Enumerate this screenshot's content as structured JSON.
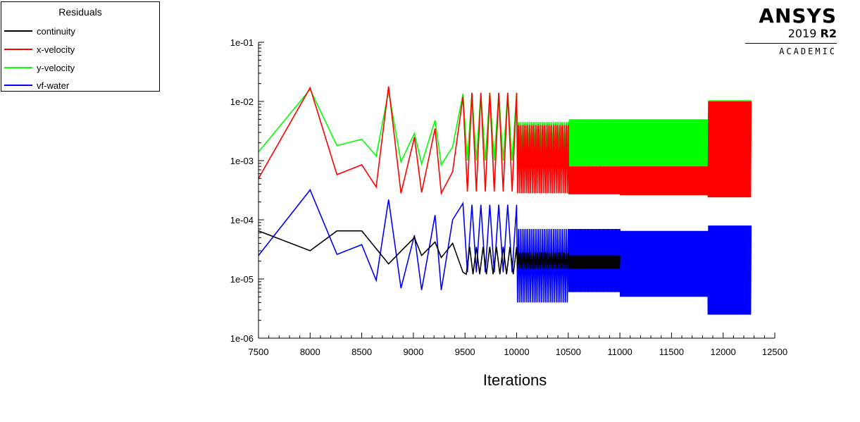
{
  "legend": {
    "title": "Residuals",
    "items": [
      {
        "label": "continuity",
        "color": "#000000"
      },
      {
        "label": "x-velocity",
        "color": "#ff0000"
      },
      {
        "label": "y-velocity",
        "color": "#00ff00"
      },
      {
        "label": "vf-water",
        "color": "#0000ff"
      }
    ]
  },
  "logo": {
    "brand": "ANSYS",
    "year": "2019",
    "release": "R2",
    "edition": "ACADEMIC"
  },
  "chart_data": {
    "type": "line",
    "title": "",
    "xlabel": "Iterations",
    "ylabel": "",
    "xlim": [
      7500,
      12500
    ],
    "ylim": [
      1e-06,
      0.1
    ],
    "yscale": "log",
    "x_ticks": [
      "7500",
      "8000",
      "8500",
      "9000",
      "9500",
      "10000",
      "10500",
      "11000",
      "11500",
      "12000",
      "12500"
    ],
    "y_ticks": [
      "1e-01",
      "1e-02",
      "1e-03",
      "1e-04",
      "1e-05",
      "1e-06"
    ],
    "grid": false,
    "legend_position": "top-left",
    "series": [
      {
        "name": "y-velocity",
        "color": "#00ff00",
        "points": [
          [
            7500,
            0.0014
          ],
          [
            8000,
            0.016
          ],
          [
            8260,
            0.0018
          ],
          [
            8500,
            0.0023
          ],
          [
            8640,
            0.0012
          ],
          [
            8760,
            0.015
          ],
          [
            8880,
            0.00095
          ],
          [
            9010,
            0.0029
          ],
          [
            9080,
            0.00088
          ],
          [
            9210,
            0.0048
          ],
          [
            9270,
            0.00085
          ],
          [
            9380,
            0.0017
          ],
          [
            9480,
            0.0135
          ]
        ],
        "oscillation": [
          {
            "x_start": 9480,
            "x_end": 10000,
            "cycles": 6,
            "low": 0.001,
            "high": 0.014
          },
          {
            "x_start": 10000,
            "x_end": 10500,
            "cycles": 28,
            "low": 0.001,
            "high": 0.0045
          },
          {
            "x_start": 10500,
            "x_end": 11000,
            "cycles": 45,
            "low": 0.0008,
            "high": 0.005
          },
          {
            "x_start": 11000,
            "x_end": 11850,
            "cycles": 90,
            "low": 0.00075,
            "high": 0.005
          },
          {
            "x_start": 11850,
            "x_end": 12270,
            "cycles": 45,
            "low": 0.0008,
            "high": 0.0105
          }
        ]
      },
      {
        "name": "x-velocity",
        "color": "#ff0000",
        "points": [
          [
            7500,
            0.0005
          ],
          [
            8000,
            0.017
          ],
          [
            8260,
            0.00058
          ],
          [
            8500,
            0.00085
          ],
          [
            8640,
            0.00036
          ],
          [
            8760,
            0.018
          ],
          [
            8880,
            0.00028
          ],
          [
            9010,
            0.0025
          ],
          [
            9080,
            0.00029
          ],
          [
            9210,
            0.0035
          ],
          [
            9270,
            0.00028
          ],
          [
            9380,
            0.00065
          ],
          [
            9480,
            0.012
          ]
        ],
        "oscillation": [
          {
            "x_start": 9480,
            "x_end": 10000,
            "cycles": 6,
            "low": 0.0003,
            "high": 0.014
          },
          {
            "x_start": 10000,
            "x_end": 10500,
            "cycles": 28,
            "low": 0.00028,
            "high": 0.004
          },
          {
            "x_start": 10500,
            "x_end": 11000,
            "cycles": 45,
            "low": 0.00027,
            "high": 0.0008
          },
          {
            "x_start": 11000,
            "x_end": 11850,
            "cycles": 90,
            "low": 0.00026,
            "high": 0.0008
          },
          {
            "x_start": 11850,
            "x_end": 12270,
            "cycles": 45,
            "low": 0.00024,
            "high": 0.01
          }
        ]
      },
      {
        "name": "vf-water",
        "color": "#0000ff",
        "points": [
          [
            7500,
            2.5e-05
          ],
          [
            8000,
            0.00032
          ],
          [
            8260,
            2.6e-05
          ],
          [
            8500,
            3.8e-05
          ],
          [
            8640,
            9.5e-06
          ],
          [
            8760,
            0.00022
          ],
          [
            8880,
            7e-06
          ],
          [
            9010,
            5.5e-05
          ],
          [
            9080,
            6.5e-06
          ],
          [
            9210,
            0.00012
          ],
          [
            9270,
            6.5e-06
          ],
          [
            9380,
            0.0001
          ],
          [
            9480,
            0.00019
          ]
        ],
        "oscillation": [
          {
            "x_start": 9480,
            "x_end": 10000,
            "cycles": 6,
            "low": 1.3e-05,
            "high": 0.00018
          },
          {
            "x_start": 10000,
            "x_end": 10500,
            "cycles": 28,
            "low": 4e-06,
            "high": 7e-05
          },
          {
            "x_start": 10500,
            "x_end": 11000,
            "cycles": 45,
            "low": 6e-06,
            "high": 7e-05
          },
          {
            "x_start": 11000,
            "x_end": 11850,
            "cycles": 90,
            "low": 5e-06,
            "high": 6.5e-05
          },
          {
            "x_start": 11850,
            "x_end": 12270,
            "cycles": 45,
            "low": 2.5e-06,
            "high": 8e-05
          }
        ]
      },
      {
        "name": "continuity",
        "color": "#000000",
        "points": [
          [
            7500,
            6.5e-05
          ],
          [
            8000,
            3e-05
          ],
          [
            8260,
            6.5e-05
          ],
          [
            8500,
            6.5e-05
          ],
          [
            8760,
            1.8e-05
          ],
          [
            8900,
            3.2e-05
          ],
          [
            9010,
            5e-05
          ],
          [
            9080,
            2.5e-05
          ],
          [
            9210,
            4.2e-05
          ],
          [
            9270,
            2.3e-05
          ],
          [
            9380,
            4e-05
          ],
          [
            9480,
            1.3e-05
          ]
        ],
        "oscillation": [
          {
            "x_start": 9480,
            "x_end": 10000,
            "cycles": 8,
            "low": 1.2e-05,
            "high": 3.5e-05
          },
          {
            "x_start": 10000,
            "x_end": 10500,
            "cycles": 25,
            "low": 1.5e-05,
            "high": 2.8e-05
          },
          {
            "x_start": 10500,
            "x_end": 11000,
            "cycles": 45,
            "low": 1.5e-05,
            "high": 2.5e-05
          }
        ]
      }
    ]
  }
}
